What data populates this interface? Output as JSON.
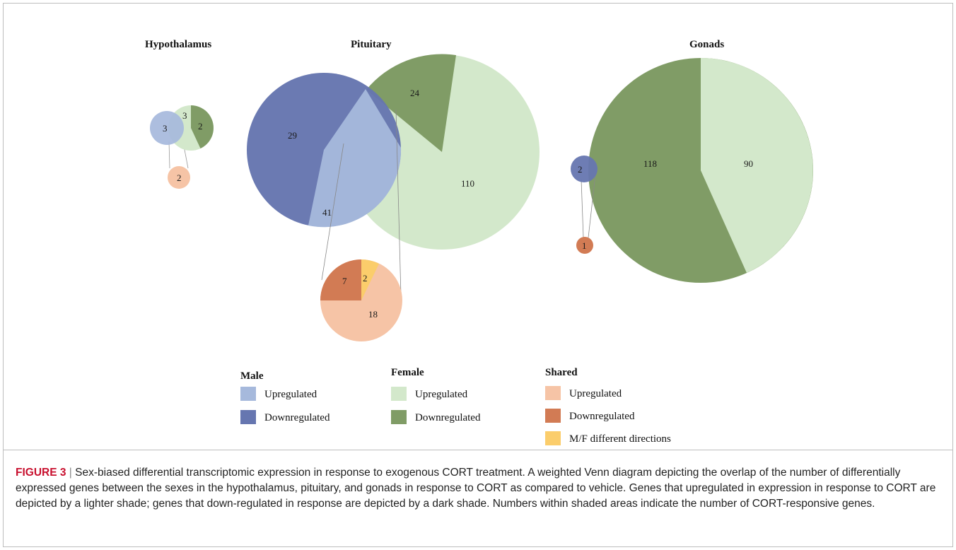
{
  "figure": {
    "regions": [
      {
        "title": "Hypothalamus",
        "male_up": "3",
        "female_up": "3",
        "female_down": "2",
        "shared_up": "2"
      },
      {
        "title": "Pituitary",
        "male_down": "29",
        "male_up": "41",
        "female_down": "24",
        "female_up": "110",
        "shared_down": "7",
        "shared_diff": "2",
        "shared_up": "18"
      },
      {
        "title": "Gonads",
        "male_down": "2",
        "female_down": "118",
        "female_up": "90",
        "shared_down": "1"
      }
    ],
    "legend": {
      "male": {
        "heading": "Male",
        "up": "Upregulated",
        "down": "Downregulated"
      },
      "female": {
        "heading": "Female",
        "up": "Upregulated",
        "down": "Downregulated"
      },
      "shared": {
        "heading": "Shared",
        "up": "Upregulated",
        "down": "Downregulated",
        "diff": "M/F different directions"
      }
    },
    "colors": {
      "male_up": "#a6b9dc",
      "male_down": "#6676b0",
      "female_up": "#d3e8cb",
      "female_down": "#809c66",
      "shared_up": "#f6c4a6",
      "shared_down": "#d27b54",
      "shared_diff": "#fbcd6b"
    }
  },
  "caption": {
    "label": "FIGURE 3",
    "separator": "|",
    "text": "Sex-biased differential transcriptomic expression in response to exogenous CORT treatment. A weighted Venn diagram depicting the overlap of the number of differentially expressed genes between the sexes in the hypothalamus, pituitary, and gonads in response to CORT as compared to vehicle. Genes that upregulated in expression in response to CORT are depicted by a lighter shade; genes that down-regulated in response are depicted by a dark shade. Numbers within shaded areas indicate the number of CORT-responsive genes."
  }
}
